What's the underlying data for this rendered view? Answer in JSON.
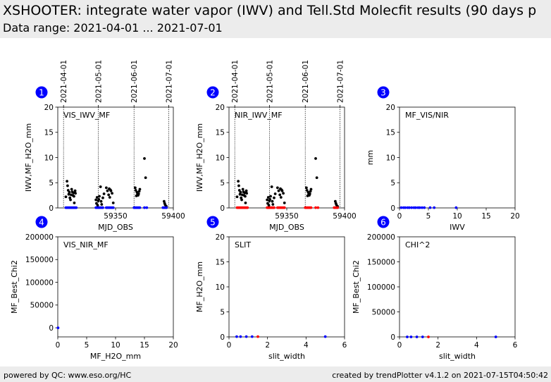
{
  "header": {
    "title": "XSHOOTER: integrate water vapor (IWV) and Tell.Std Molecfit results (90 days p",
    "subtitle": "Data range: 2021-04-01 ... 2021-07-01"
  },
  "footer": {
    "left": "powered by QC: www.eso.org/HC",
    "right": "created by trendPlotter v4.1.2 on 2021-07-15T04:50:42"
  },
  "colors": {
    "black": "#000000",
    "blue": "#0000ff",
    "red": "#ff0000",
    "badge": "#0000ff"
  },
  "chart_data": [
    {
      "type": "scatter",
      "badge": "1",
      "label": "VIS_IWV_MF",
      "xlabel": "MJD_OBS",
      "ylabel": "IWV,MF_H2O_mm",
      "xlim": [
        59300,
        59400
      ],
      "ylim": [
        0,
        20
      ],
      "xticks": [
        59350,
        59400
      ],
      "yticks": [
        0,
        5,
        10,
        15,
        20
      ],
      "date_markers": [
        {
          "label": "2021-04-01",
          "x": 59305
        },
        {
          "label": "2021-05-01",
          "x": 59335
        },
        {
          "label": "2021-06-01",
          "x": 59366
        },
        {
          "label": "2021-07-01",
          "x": 59396
        }
      ],
      "series": [
        {
          "color": "black",
          "points": [
            [
              59307,
              2.2
            ],
            [
              59308,
              5.3
            ],
            [
              59308.5,
              4.4
            ],
            [
              59309,
              3.5
            ],
            [
              59309.5,
              2.7
            ],
            [
              59310,
              3.1
            ],
            [
              59310.5,
              2.0
            ],
            [
              59311,
              1.6
            ],
            [
              59311.5,
              2.6
            ],
            [
              59312,
              3.7
            ],
            [
              59312.5,
              3.2
            ],
            [
              59313,
              2.5
            ],
            [
              59313.5,
              3.0
            ],
            [
              59314,
              2.3
            ],
            [
              59314.3,
              1.0
            ],
            [
              59315,
              3.4
            ],
            [
              59315.3,
              2.9
            ],
            [
              59333,
              1.6
            ],
            [
              59333.5,
              0.9
            ],
            [
              59334,
              2.1
            ],
            [
              59334.5,
              0.5
            ],
            [
              59335,
              1.4
            ],
            [
              59335.5,
              1.7
            ],
            [
              59336,
              2.3
            ],
            [
              59337,
              4.2
            ],
            [
              59337.5,
              1.3
            ],
            [
              59338,
              0.7
            ],
            [
              59339,
              2.0
            ],
            [
              59340,
              2.8
            ],
            [
              59342,
              4.0
            ],
            [
              59343,
              3.4
            ],
            [
              59344,
              2.6
            ],
            [
              59344.5,
              3.8
            ],
            [
              59345,
              2.1
            ],
            [
              59345.5,
              3.6
            ],
            [
              59346,
              3.4
            ],
            [
              59347,
              2.9
            ],
            [
              59348,
              1.0
            ],
            [
              59367,
              4.0
            ],
            [
              59367.5,
              3.5
            ],
            [
              59368,
              2.4
            ],
            [
              59368.5,
              3.1
            ],
            [
              59369,
              2.7
            ],
            [
              59369.5,
              2.5
            ],
            [
              59370,
              2.8
            ],
            [
              59370.5,
              3.3
            ],
            [
              59371,
              3.7
            ],
            [
              59375,
              9.8
            ],
            [
              59376,
              6.0
            ],
            [
              59392,
              1.3
            ],
            [
              59392.5,
              0.9
            ],
            [
              59393,
              0.6
            ],
            [
              59394,
              0.3
            ]
          ]
        },
        {
          "color": "blue",
          "points": [
            [
              59307,
              0.05
            ],
            [
              59308,
              0.05
            ],
            [
              59309,
              0.05
            ],
            [
              59310,
              0.05
            ],
            [
              59311,
              0.05
            ],
            [
              59312,
              0.05
            ],
            [
              59313,
              0.05
            ],
            [
              59314,
              0.05
            ],
            [
              59315,
              0.05
            ],
            [
              59316,
              0.05
            ],
            [
              59333,
              0.05
            ],
            [
              59334,
              0.05
            ],
            [
              59335,
              0.05
            ],
            [
              59336,
              0.05
            ],
            [
              59337,
              0.05
            ],
            [
              59338,
              0.05
            ],
            [
              59339,
              0.05
            ],
            [
              59342,
              0.05
            ],
            [
              59343,
              0.05
            ],
            [
              59344,
              0.05
            ],
            [
              59345,
              0.05
            ],
            [
              59346,
              0.05
            ],
            [
              59347,
              0.05
            ],
            [
              59348,
              0.05
            ],
            [
              59366,
              0.05
            ],
            [
              59367,
              0.05
            ],
            [
              59368,
              0.05
            ],
            [
              59369,
              0.05
            ],
            [
              59370,
              0.05
            ],
            [
              59371,
              0.05
            ],
            [
              59375,
              0.05
            ],
            [
              59377,
              0.05
            ],
            [
              59391,
              0.05
            ],
            [
              59392,
              0.05
            ],
            [
              59393,
              0.05
            ],
            [
              59394,
              0.05
            ]
          ]
        }
      ]
    },
    {
      "type": "scatter",
      "badge": "2",
      "label": "NIR_IWV_MF",
      "xlabel": "MJD_OBS",
      "ylabel": "IWV,MF_H2O_mm",
      "xlim": [
        59300,
        59400
      ],
      "ylim": [
        0,
        20
      ],
      "xticks": [
        59350,
        59400
      ],
      "yticks": [
        0,
        5,
        10,
        15,
        20
      ],
      "date_markers": [
        {
          "label": "2021-04-01",
          "x": 59305
        },
        {
          "label": "2021-05-01",
          "x": 59335
        },
        {
          "label": "2021-06-01",
          "x": 59366
        },
        {
          "label": "2021-07-01",
          "x": 59396
        }
      ],
      "series": [
        {
          "color": "black",
          "points": [
            [
              59307,
              2.2
            ],
            [
              59308,
              5.3
            ],
            [
              59308.5,
              4.4
            ],
            [
              59309,
              3.5
            ],
            [
              59309.5,
              2.7
            ],
            [
              59310,
              3.1
            ],
            [
              59310.5,
              2.0
            ],
            [
              59311,
              1.6
            ],
            [
              59311.5,
              2.6
            ],
            [
              59312,
              3.7
            ],
            [
              59312.5,
              3.2
            ],
            [
              59313,
              2.5
            ],
            [
              59313.5,
              3.0
            ],
            [
              59314,
              2.3
            ],
            [
              59314.3,
              1.0
            ],
            [
              59315,
              3.4
            ],
            [
              59315.3,
              2.9
            ],
            [
              59333,
              1.6
            ],
            [
              59333.5,
              0.9
            ],
            [
              59334,
              2.1
            ],
            [
              59334.5,
              0.5
            ],
            [
              59335,
              1.4
            ],
            [
              59335.5,
              1.7
            ],
            [
              59336,
              2.3
            ],
            [
              59337,
              4.2
            ],
            [
              59337.5,
              1.3
            ],
            [
              59338,
              0.7
            ],
            [
              59339,
              2.0
            ],
            [
              59340,
              2.8
            ],
            [
              59342,
              4.0
            ],
            [
              59343,
              3.4
            ],
            [
              59344,
              2.6
            ],
            [
              59344.5,
              3.8
            ],
            [
              59345,
              2.1
            ],
            [
              59345.5,
              3.6
            ],
            [
              59346,
              3.4
            ],
            [
              59347,
              2.9
            ],
            [
              59348,
              1.0
            ],
            [
              59367,
              4.0
            ],
            [
              59367.5,
              3.5
            ],
            [
              59368,
              2.4
            ],
            [
              59368.5,
              3.1
            ],
            [
              59369,
              2.7
            ],
            [
              59369.5,
              2.5
            ],
            [
              59370,
              2.8
            ],
            [
              59370.5,
              3.3
            ],
            [
              59371,
              3.7
            ],
            [
              59375,
              9.8
            ],
            [
              59376,
              6.0
            ],
            [
              59392,
              1.3
            ],
            [
              59392.5,
              0.9
            ],
            [
              59393,
              0.6
            ],
            [
              59394,
              0.3
            ]
          ]
        },
        {
          "color": "red",
          "points": [
            [
              59307,
              0.05
            ],
            [
              59308,
              0.05
            ],
            [
              59309,
              0.05
            ],
            [
              59310,
              0.05
            ],
            [
              59311,
              0.05
            ],
            [
              59312,
              0.05
            ],
            [
              59313,
              0.05
            ],
            [
              59314,
              0.05
            ],
            [
              59315,
              0.05
            ],
            [
              59316,
              0.05
            ],
            [
              59333,
              0.05
            ],
            [
              59334,
              0.05
            ],
            [
              59335,
              0.05
            ],
            [
              59336,
              0.05
            ],
            [
              59337,
              0.05
            ],
            [
              59338,
              0.05
            ],
            [
              59339,
              0.05
            ],
            [
              59342,
              0.05
            ],
            [
              59343,
              0.05
            ],
            [
              59344,
              0.05
            ],
            [
              59345,
              0.05
            ],
            [
              59346,
              0.05
            ],
            [
              59347,
              0.05
            ],
            [
              59348,
              0.05
            ],
            [
              59366,
              0.05
            ],
            [
              59367,
              0.05
            ],
            [
              59368,
              0.05
            ],
            [
              59369,
              0.05
            ],
            [
              59370,
              0.05
            ],
            [
              59371,
              0.05
            ],
            [
              59375,
              0.05
            ],
            [
              59377,
              0.05
            ],
            [
              59391,
              0.05
            ],
            [
              59392,
              0.05
            ],
            [
              59393,
              0.05
            ],
            [
              59394,
              0.05
            ]
          ]
        }
      ]
    },
    {
      "type": "scatter",
      "badge": "3",
      "label": "MF_VIS/NIR",
      "xlabel": "IWV",
      "ylabel": "mm",
      "xlim": [
        0,
        20
      ],
      "ylim": [
        0,
        20
      ],
      "xticks": [
        0,
        5,
        10,
        15,
        20
      ],
      "yticks": [
        0,
        5,
        10,
        15,
        20
      ],
      "series": [
        {
          "color": "blue",
          "points": [
            [
              0.3,
              0.05
            ],
            [
              0.7,
              0.05
            ],
            [
              1.0,
              0.05
            ],
            [
              1.4,
              0.05
            ],
            [
              1.7,
              0.05
            ],
            [
              2.1,
              0.05
            ],
            [
              2.5,
              0.05
            ],
            [
              2.8,
              0.05
            ],
            [
              3.2,
              0.05
            ],
            [
              3.5,
              0.05
            ],
            [
              3.9,
              0.05
            ],
            [
              4.3,
              0.05
            ],
            [
              5.3,
              0.05
            ],
            [
              6.0,
              0.05
            ],
            [
              9.8,
              0.05
            ]
          ]
        }
      ]
    },
    {
      "type": "scatter",
      "badge": "4",
      "label": "VIS_NIR_MF",
      "xlabel": "MF_H2O_mm",
      "ylabel": "MF_Best_Chi2",
      "xlim": [
        0,
        20
      ],
      "ylim": [
        -20000,
        200000
      ],
      "xticks": [
        0,
        5,
        10,
        15,
        20
      ],
      "yticks": [
        0,
        50000,
        100000,
        150000,
        200000
      ],
      "series": [
        {
          "color": "blue",
          "points": [
            [
              0.05,
              0
            ]
          ]
        }
      ]
    },
    {
      "type": "scatter",
      "badge": "5",
      "label": "SLIT",
      "xlabel": "slit_width",
      "ylabel": "MF_H2O_mm",
      "xlim": [
        0,
        6
      ],
      "ylim": [
        0,
        20
      ],
      "xticks": [
        0,
        2,
        4,
        6
      ],
      "yticks": [
        0,
        5,
        10,
        15,
        20
      ],
      "series": [
        {
          "color": "blue",
          "points": [
            [
              0.4,
              0.05
            ],
            [
              0.6,
              0.05
            ],
            [
              0.9,
              0.05
            ],
            [
              1.2,
              0.05
            ],
            [
              5.0,
              0.05
            ]
          ]
        },
        {
          "color": "red",
          "points": [
            [
              1.5,
              0.05
            ]
          ]
        }
      ]
    },
    {
      "type": "scatter",
      "badge": "6",
      "label": "CHI^2",
      "xlabel": "slit_width",
      "ylabel": "MF_Best_Chi2",
      "xlim": [
        0,
        6
      ],
      "ylim": [
        0,
        200000
      ],
      "xticks": [
        0,
        2,
        4,
        6
      ],
      "yticks": [
        0,
        50000,
        100000,
        150000,
        200000
      ],
      "series": [
        {
          "color": "blue",
          "points": [
            [
              0.4,
              0
            ],
            [
              0.6,
              0
            ],
            [
              0.9,
              0
            ],
            [
              1.2,
              0
            ],
            [
              5.0,
              0
            ]
          ]
        },
        {
          "color": "red",
          "points": [
            [
              1.5,
              0
            ]
          ]
        }
      ]
    }
  ]
}
